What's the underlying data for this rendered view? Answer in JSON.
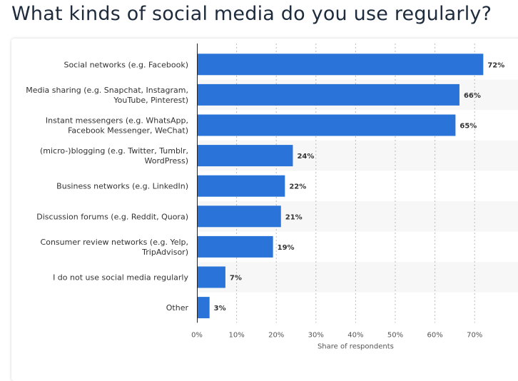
{
  "page": {
    "title": "What kinds of social media do you use regularly?"
  },
  "colors": {
    "bar": "#2a74d9",
    "band": "#f7f7f7",
    "grid": "#bbbbbb",
    "axis": "#222222"
  },
  "chart_data": {
    "type": "bar",
    "orientation": "horizontal",
    "title": "",
    "xlabel": "Share of respondents",
    "ylabel": "",
    "xlim": [
      0,
      80
    ],
    "grid": true,
    "ticks": [
      0,
      10,
      20,
      30,
      40,
      50,
      60,
      70
    ],
    "tick_labels": [
      "0%",
      "10%",
      "20%",
      "30%",
      "40%",
      "50%",
      "60%",
      "70%"
    ],
    "categories": [
      [
        "Social networks (e.g. Facebook)"
      ],
      [
        "Media sharing (e.g. Snapchat, Instagram,",
        "YouTube, Pinterest)"
      ],
      [
        "Instant messengers (e.g. WhatsApp,",
        "Facebook Messenger, WeChat)"
      ],
      [
        "(micro-)blogging (e.g. Twitter, Tumblr,",
        "WordPress)"
      ],
      [
        "Business networks (e.g. LinkedIn)"
      ],
      [
        "Discussion forums (e.g. Reddit, Quora)"
      ],
      [
        "Consumer review networks (e.g. Yelp,",
        "TripAdvisor)"
      ],
      [
        "I do not use social media regularly"
      ],
      [
        "Other"
      ]
    ],
    "values": [
      72,
      66,
      65,
      24,
      22,
      21,
      19,
      7,
      3
    ],
    "value_labels": [
      "72%",
      "66%",
      "65%",
      "24%",
      "22%",
      "21%",
      "19%",
      "7%",
      "3%"
    ]
  }
}
